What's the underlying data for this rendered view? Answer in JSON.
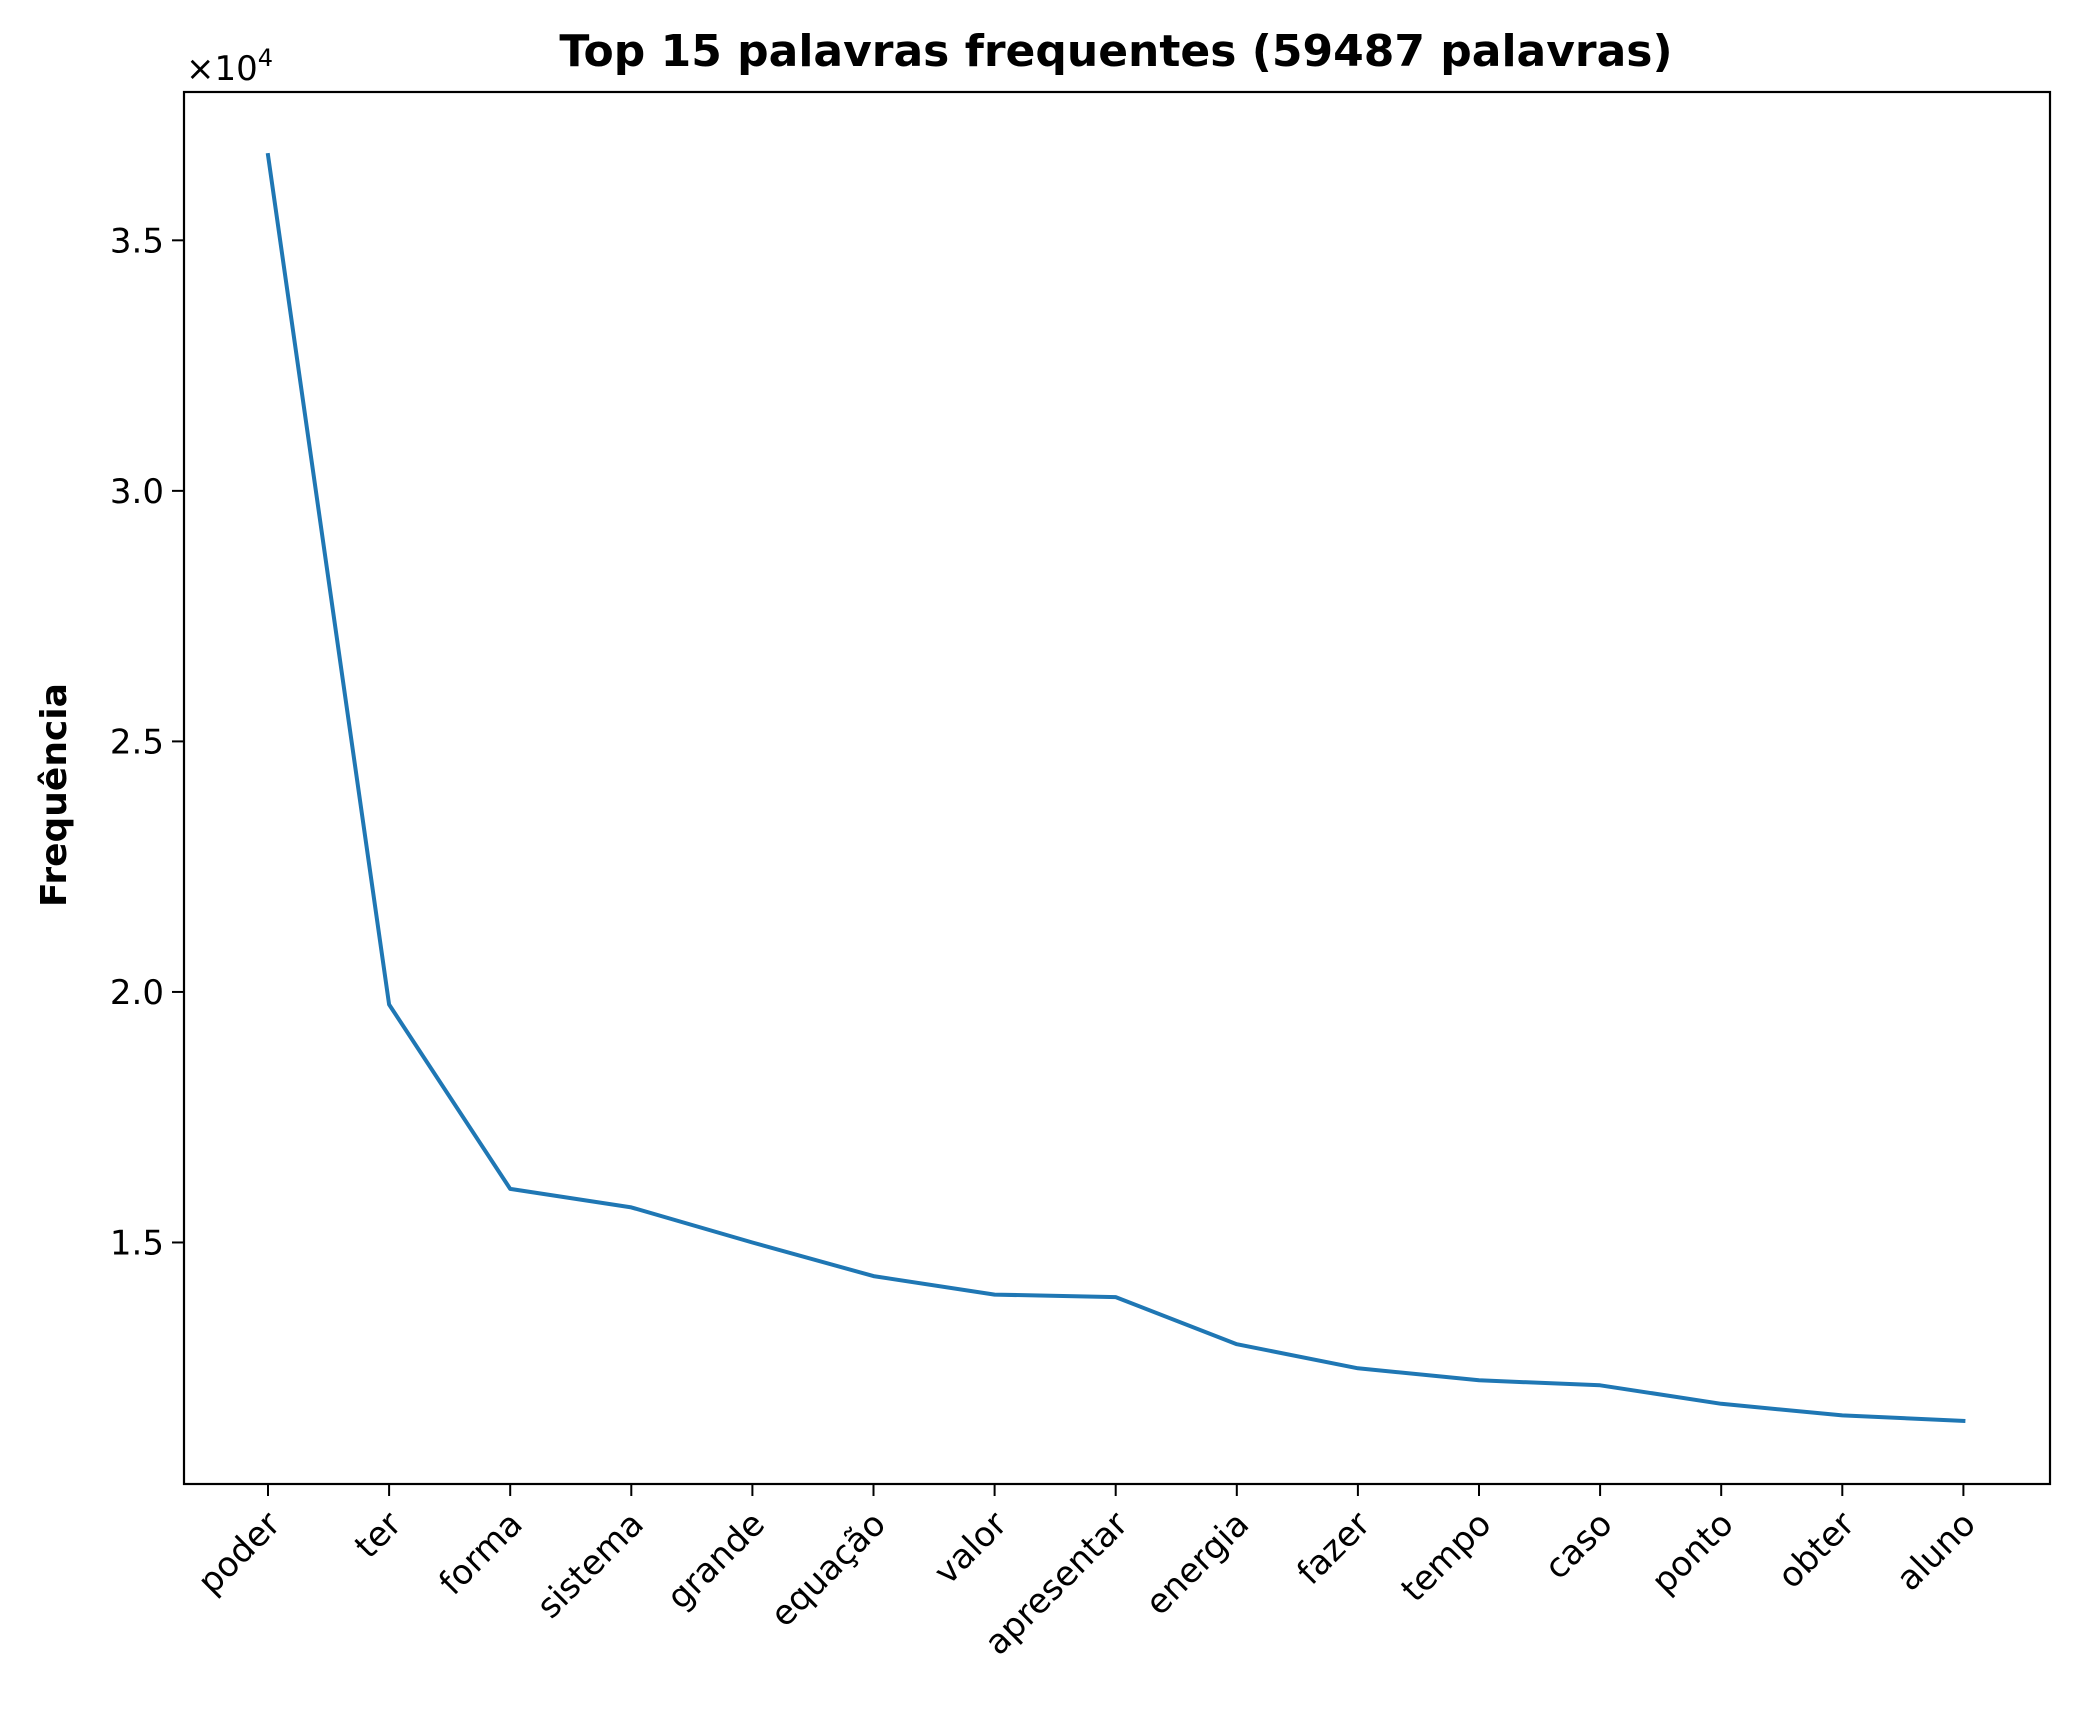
{
  "chart_data": {
    "type": "line",
    "title": "Top 15 palavras frequentes (59487 palavras)",
    "xlabel": "",
    "ylabel": "Frequência",
    "y_offset_text": "×10",
    "y_offset_exponent": "4",
    "categories": [
      "poder",
      "ter",
      "forma",
      "sistema",
      "grande",
      "equação",
      "valor",
      "apresentar",
      "energia",
      "fazer",
      "tempo",
      "caso",
      "ponto",
      "obter",
      "aluno"
    ],
    "series": [
      {
        "values": [
          36700,
          19750,
          16070,
          15700,
          15000,
          14330,
          13960,
          13910,
          12970,
          12490,
          12250,
          12150,
          11780,
          11550,
          11440
        ],
        "color": "#1f77b4"
      }
    ],
    "yticks": [
      15000,
      20000,
      25000,
      30000,
      35000
    ],
    "ytick_labels": [
      "1.5",
      "2.0",
      "2.5",
      "3.0",
      "3.5"
    ],
    "ylim": [
      10180,
      37960
    ],
    "grid": false,
    "legend": "none"
  }
}
